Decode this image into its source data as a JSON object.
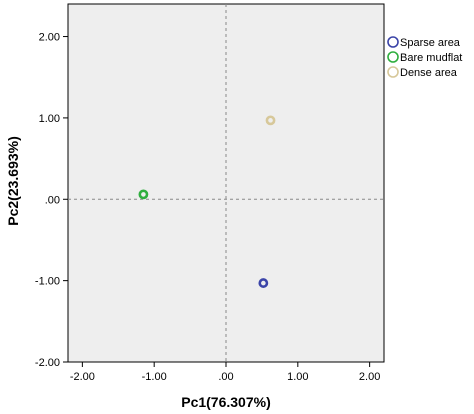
{
  "chart_data": {
    "type": "scatter",
    "xlabel": "Pc1(76.307%)",
    "ylabel": "Pc2(23.693%)",
    "xlim": [
      -2.2,
      2.2
    ],
    "ylim": [
      -2.0,
      2.4
    ],
    "xticks": [
      -2.0,
      -1.0,
      0.0,
      1.0,
      2.0
    ],
    "xtick_labels": [
      "-2.00",
      "-1.00",
      ".00",
      "1.00",
      "2.00"
    ],
    "yticks": [
      -2.0,
      -1.0,
      0.0,
      1.0,
      2.0
    ],
    "ytick_labels": [
      "-2.00",
      "-1.00",
      ".00",
      "1.00",
      "2.00"
    ],
    "reference_lines": {
      "x": 0,
      "y": 0,
      "style": "dashed"
    },
    "plot_background": "#eeeeee",
    "grid": false,
    "legend_position": "right",
    "series": [
      {
        "name": "Sparse area",
        "color": "#3b44a8",
        "x": 0.52,
        "y": -1.03
      },
      {
        "name": "Bare mudflat",
        "color": "#2fae3e",
        "x": -1.15,
        "y": 0.06
      },
      {
        "name": "Dense area",
        "color": "#d7c89a",
        "x": 0.62,
        "y": 0.97
      }
    ]
  }
}
